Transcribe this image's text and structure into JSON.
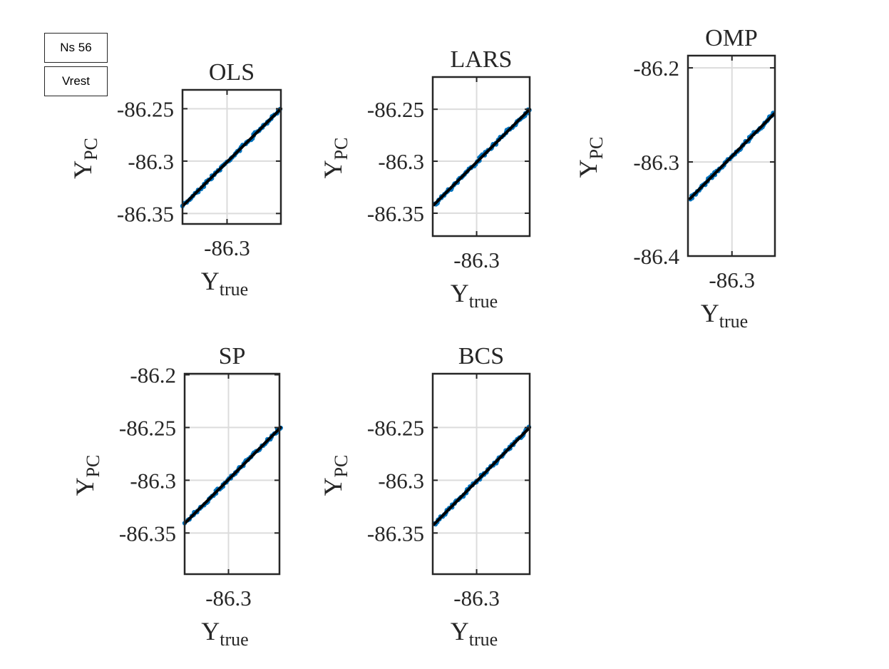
{
  "ui": {
    "ns_label": "Ns 56",
    "vrest_label": "Vrest"
  },
  "colors": {
    "points": "#0072bd",
    "fit_line": "#000000",
    "axes": "#262626",
    "grid": "#dcdcdc"
  },
  "chart_data": [
    {
      "type": "scatter",
      "title": "OLS",
      "xlabel": "Y_true",
      "ylabel": "Y_PC",
      "xlim": [
        -86.343,
        -86.248
      ],
      "ylim": [
        -86.36,
        -86.232
      ],
      "xticks": [
        -86.3
      ],
      "xtick_labels": [
        "-86.3"
      ],
      "yticks": [
        -86.35,
        -86.3,
        -86.25
      ],
      "ytick_labels": [
        "-86.35",
        "-86.3",
        "-86.25"
      ],
      "grid": true,
      "points": {
        "from": [
          -86.342,
          -86.342
        ],
        "to": [
          -86.248,
          -86.25
        ]
      }
    },
    {
      "type": "scatter",
      "title": "LARS",
      "xlabel": "Y_true",
      "ylabel": "Y_PC",
      "xlim": [
        -86.343,
        -86.248
      ],
      "ylim": [
        -86.372,
        -86.219
      ],
      "xticks": [
        -86.3
      ],
      "xtick_labels": [
        "-86.3"
      ],
      "yticks": [
        -86.35,
        -86.3,
        -86.25
      ],
      "ytick_labels": [
        "-86.35",
        "-86.3",
        "-86.25"
      ],
      "grid": true,
      "points": {
        "from": [
          -86.342,
          -86.342
        ],
        "to": [
          -86.248,
          -86.25
        ]
      }
    },
    {
      "type": "scatter",
      "title": "OMP",
      "xlabel": "Y_true",
      "ylabel": "Y_PC",
      "xlim": [
        -86.343,
        -86.258
      ],
      "ylim": [
        -86.4,
        -86.187
      ],
      "xticks": [
        -86.3
      ],
      "xtick_labels": [
        "-86.3"
      ],
      "yticks": [
        -86.4,
        -86.3,
        -86.2
      ],
      "ytick_labels": [
        "-86.4",
        "-86.3",
        "-86.2"
      ],
      "grid": true,
      "points": {
        "from": [
          -86.341,
          -86.339
        ],
        "to": [
          -86.259,
          -86.249
        ]
      }
    },
    {
      "type": "scatter",
      "title": "SP",
      "xlabel": "Y_true",
      "ylabel": "Y_PC",
      "xlim": [
        -86.343,
        -86.25
      ],
      "ylim": [
        -86.389,
        -86.199
      ],
      "xticks": [
        -86.3
      ],
      "xtick_labels": [
        "-86.3"
      ],
      "yticks": [
        -86.35,
        -86.3,
        -86.25,
        -86.2
      ],
      "ytick_labels": [
        "-86.35",
        "-86.3",
        "-86.25",
        "-86.2"
      ],
      "grid": true,
      "points": {
        "from": [
          -86.342,
          -86.34
        ],
        "to": [
          -86.249,
          -86.25
        ]
      }
    },
    {
      "type": "scatter",
      "title": "BCS",
      "xlabel": "Y_true",
      "ylabel": "Y_PC",
      "xlim": [
        -86.343,
        -86.248
      ],
      "ylim": [
        -86.389,
        -86.199
      ],
      "xticks": [
        -86.3
      ],
      "xtick_labels": [
        "-86.3"
      ],
      "yticks": [
        -86.35,
        -86.3,
        -86.25
      ],
      "ytick_labels": [
        "-86.35",
        "-86.3",
        "-86.25"
      ],
      "grid": true,
      "points": {
        "from": [
          -86.342,
          -86.342
        ],
        "to": [
          -86.248,
          -86.25
        ]
      }
    }
  ]
}
